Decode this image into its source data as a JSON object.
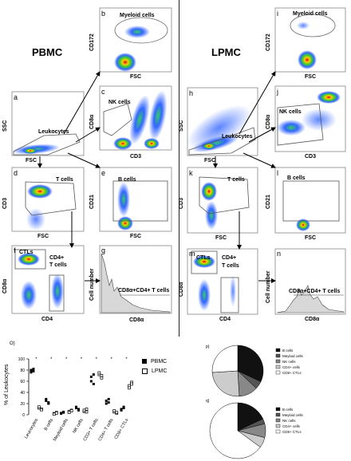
{
  "headers": {
    "left": "PBMC",
    "right": "LPMC"
  },
  "axes": {
    "ssc": "SSC",
    "fsc": "FSC",
    "cd172": "CD172",
    "cd8a": "CD8α",
    "cd3": "CD3",
    "cd21": "CD21",
    "cd4": "CD4",
    "cell_number": "Cell number"
  },
  "panels": {
    "a": "a",
    "b": "b",
    "c": "c",
    "d": "d",
    "e": "e",
    "f": "f",
    "g": "g",
    "h": "h",
    "i": "i",
    "j": "j",
    "k": "k",
    "l": "l",
    "m": "m",
    "n": "n",
    "o": "O)",
    "p": "p)",
    "q": "q)"
  },
  "gates": {
    "myeloid": "Myeloid cells",
    "leukocytes": "Leukocytes",
    "nk": "NK cells",
    "t_cells": "T cells",
    "b_cells": "B cells",
    "ctls": "CTLs",
    "cd4_t_line1": "CD4+",
    "cd4_t_line2": "T cells",
    "cd8cd4": "CD8α+CD4+ T cells"
  },
  "chart_data": [
    {
      "type": "scatter",
      "ylabel": "% of Leukocytes",
      "ylim": [
        0,
        100
      ],
      "yticks": [
        0,
        20,
        40,
        60,
        80,
        100
      ],
      "categories": [
        "Leucocytes",
        "B cells",
        "Meyloid cells",
        "NK cells",
        "CD3+ T cells",
        "CD4+ T cells",
        "CD8+ CTLs"
      ],
      "significance": [
        "*",
        "*",
        "*",
        "*",
        "*",
        "*",
        "*"
      ],
      "series": [
        {
          "name": "PBMC",
          "marker": "filled",
          "values": [
            [
              80,
              78,
              76,
              82
            ],
            [
              25,
              22,
              28,
              20
            ],
            [
              3,
              5,
              2,
              4
            ],
            [
              12,
              8,
              14,
              10
            ],
            [
              68,
              72,
              60,
              55
            ],
            [
              25,
              28,
              20,
              22
            ],
            [
              10,
              12,
              8,
              14
            ]
          ]
        },
        {
          "name": "LPMC",
          "marker": "open",
          "values": [
            [
              12,
              10,
              14,
              9
            ],
            [
              2,
              4,
              1,
              3
            ],
            [
              6,
              8,
              4,
              7
            ],
            [
              6,
              10,
              8,
              5
            ],
            [
              72,
              66,
              75,
              70
            ],
            [
              5,
              3,
              7,
              4
            ],
            [
              52,
              58,
              48,
              55
            ]
          ]
        }
      ]
    },
    {
      "type": "pie",
      "panel": "p)",
      "legend": [
        "B cells",
        "Meyloid cells",
        "NK cells",
        "CD4+ cells",
        "CD8+ CTLs"
      ],
      "values": [
        32,
        5,
        12,
        25,
        26
      ],
      "colors": [
        "#111111",
        "#555555",
        "#888888",
        "#cccccc",
        "#ffffff"
      ]
    },
    {
      "type": "pie",
      "panel": "q)",
      "legend": [
        "B cells",
        "Meyloid cells",
        "NK cells",
        "CD4+ cells",
        "CD8+ CTLs"
      ],
      "values": [
        18,
        3,
        8,
        6,
        65
      ],
      "colors": [
        "#111111",
        "#555555",
        "#888888",
        "#cccccc",
        "#ffffff"
      ]
    }
  ]
}
